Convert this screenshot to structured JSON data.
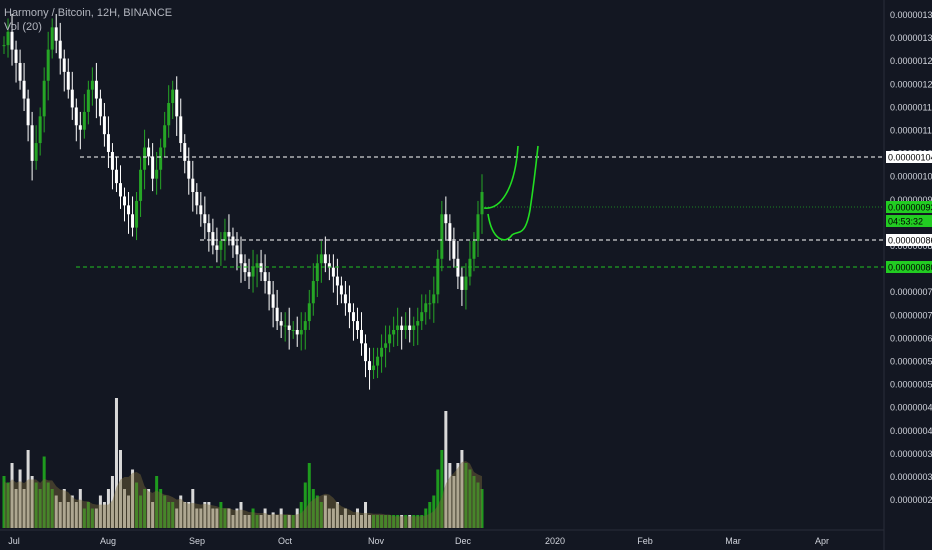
{
  "legend": {
    "symbol": "Harmony / Bitcoin, 12H, BINANCE",
    "volume": "Vol (20)"
  },
  "colors": {
    "background": "#131722",
    "up": "#26a626",
    "down": "#ffffff",
    "volume_up": "#1e9b1e",
    "volume_down": "#d9d9d9",
    "volume_ma": "#7a6a3a",
    "support_line": "#22c022",
    "resistance_line": "#ffffff",
    "projection": "#22dd22",
    "axis_text": "#d1d4dc",
    "badge_green": "#22cc22",
    "badge_white": "#ffffff"
  },
  "chart_data": {
    "type": "candlestick",
    "title": "Harmony / Bitcoin, 12H, BINANCE",
    "x_ticks": [
      "Jul",
      "Aug",
      "Sep",
      "Oct",
      "Nov",
      "Dec",
      "2020",
      "Feb",
      "Mar",
      "Apr"
    ],
    "y_ticks": [
      "0.00000135",
      "0.00000130",
      "0.00000125",
      "0.00000120",
      "0.00000115",
      "0.00000110",
      "0.00000104",
      "0.00000100",
      "0.00000095",
      "0.00000093",
      "0.00000086",
      "0.00000080",
      "0.00000075",
      "0.00000070",
      "0.00000064",
      "0.00000058",
      "0.00000052",
      "0.00000046",
      "0.00000041",
      "0.00000036",
      "0.00000031",
      "0.00000026"
    ],
    "ylim": [
      2.6e-07,
      1.35e-06
    ],
    "close_series": [
      1.28,
      1.31,
      1.27,
      1.24,
      1.2,
      1.16,
      1.1,
      1.02,
      1.06,
      1.12,
      1.2,
      1.27,
      1.32,
      1.29,
      1.25,
      1.22,
      1.18,
      1.14,
      1.1,
      1.09,
      1.13,
      1.18,
      1.2,
      1.16,
      1.12,
      1.08,
      1.04,
      1.0,
      0.97,
      0.94,
      0.92,
      0.9,
      0.87,
      0.93,
      1.0,
      1.05,
      1.03,
      0.98,
      1.0,
      1.05,
      1.1,
      1.15,
      1.18,
      1.12,
      1.06,
      1.02,
      0.98,
      0.95,
      0.92,
      0.9,
      0.88,
      0.86,
      0.83,
      0.82,
      0.84,
      0.86,
      0.85,
      0.83,
      0.81,
      0.79,
      0.77,
      0.76,
      0.78,
      0.79,
      0.77,
      0.75,
      0.72,
      0.69,
      0.66,
      0.65,
      0.65,
      0.64,
      0.64,
      0.63,
      0.64,
      0.66,
      0.7,
      0.75,
      0.79,
      0.81,
      0.79,
      0.78,
      0.76,
      0.74,
      0.72,
      0.7,
      0.68,
      0.66,
      0.64,
      0.61,
      0.57,
      0.55,
      0.56,
      0.58,
      0.6,
      0.61,
      0.63,
      0.64,
      0.65,
      0.64,
      0.65,
      0.64,
      0.65,
      0.66,
      0.68,
      0.7,
      0.7,
      0.72,
      0.8,
      0.9,
      0.88,
      0.84,
      0.8,
      0.76,
      0.73,
      0.76,
      0.8,
      0.84,
      0.9,
      0.95
    ],
    "close_unit": "0.000001 BTC",
    "volume_series": [
      0.4,
      0.35,
      0.5,
      0.3,
      0.45,
      0.3,
      0.6,
      0.4,
      0.35,
      0.3,
      0.55,
      0.35,
      0.3,
      0.25,
      0.2,
      0.3,
      0.2,
      0.25,
      0.2,
      0.3,
      0.15,
      0.2,
      0.15,
      0.15,
      0.25,
      0.2,
      0.3,
      0.4,
      1.0,
      0.6,
      0.3,
      0.25,
      0.45,
      0.35,
      0.25,
      0.3,
      0.3,
      0.2,
      0.4,
      0.3,
      0.25,
      0.2,
      0.2,
      0.15,
      0.25,
      0.2,
      0.2,
      0.3,
      0.15,
      0.15,
      0.2,
      0.2,
      0.15,
      0.15,
      0.2,
      0.15,
      0.15,
      0.1,
      0.15,
      0.2,
      0.1,
      0.1,
      0.15,
      0.1,
      0.1,
      0.15,
      0.1,
      0.12,
      0.1,
      0.15,
      0.1,
      0.1,
      0.1,
      0.15,
      0.2,
      0.35,
      0.5,
      0.3,
      0.25,
      0.2,
      0.25,
      0.15,
      0.15,
      0.2,
      0.1,
      0.15,
      0.1,
      0.1,
      0.15,
      0.1,
      0.2,
      0.1,
      0.1,
      0.1,
      0.1,
      0.1,
      0.1,
      0.1,
      0.1,
      0.1,
      0.1,
      0.1,
      0.1,
      0.1,
      0.1,
      0.15,
      0.2,
      0.25,
      0.45,
      0.6,
      0.9,
      0.5,
      0.4,
      0.5,
      0.6,
      0.5,
      0.45,
      0.4,
      0.35,
      0.3
    ],
    "volume_unit": "relative",
    "horizontal_lines": [
      {
        "value": 1.04e-06,
        "style": "dashed",
        "color": "white",
        "label": "0.00000104"
      },
      {
        "value": 8.6e-07,
        "style": "dashed",
        "color": "white",
        "label": "0.00000086"
      },
      {
        "value": 8e-07,
        "style": "dashed",
        "color": "green",
        "label": "0.00000080"
      }
    ],
    "price_badges": [
      {
        "label": "0.00000093",
        "color": "green"
      },
      {
        "label": "04:53:32",
        "color": "green"
      }
    ]
  }
}
